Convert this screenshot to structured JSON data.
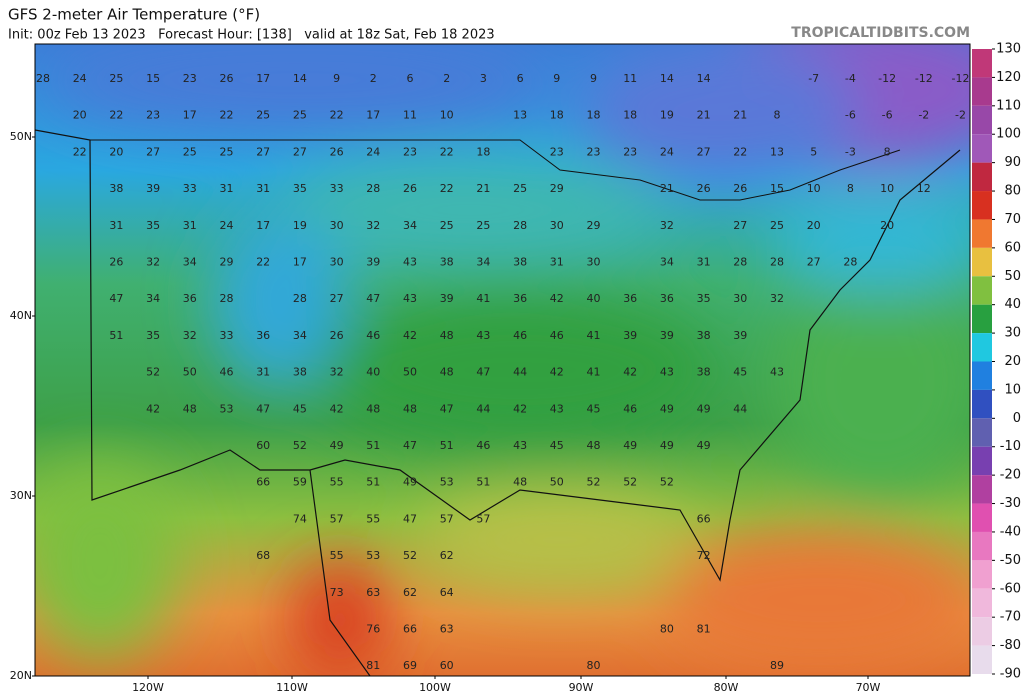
{
  "header": {
    "title": "GFS 2-meter Air Temperature (°F)",
    "subtitle": "Init: 00z Feb 13 2023   Forecast Hour: [138]   valid at 18z Sat, Feb 18 2023",
    "site": "TROPICALTIDBITS.COM"
  },
  "latitudes": [
    "50N",
    "40N",
    "30N",
    "20N"
  ],
  "longitudes": [
    "120W",
    "110W",
    "100W",
    "90W",
    "80W",
    "70W"
  ],
  "colorbar": {
    "ticks": [
      130,
      120,
      110,
      100,
      90,
      80,
      70,
      60,
      50,
      40,
      30,
      20,
      10,
      0,
      -10,
      -20,
      -30,
      -40,
      -50,
      -60,
      -70,
      -80,
      -90
    ]
  },
  "temperatures": [
    [
      28,
      24,
      25,
      15,
      23,
      26,
      17,
      14,
      9,
      2,
      6,
      2,
      3,
      6,
      9,
      9,
      11,
      14,
      14,
      null,
      null,
      -7,
      -4,
      -12,
      -12,
      -12
    ],
    [
      null,
      20,
      22,
      23,
      17,
      22,
      25,
      25,
      22,
      17,
      11,
      10,
      null,
      13,
      18,
      18,
      18,
      19,
      21,
      21,
      8,
      null,
      -6,
      -6,
      -2,
      -2
    ],
    [
      null,
      22,
      20,
      27,
      25,
      25,
      27,
      27,
      26,
      24,
      23,
      22,
      18,
      null,
      23,
      23,
      23,
      24,
      27,
      22,
      13,
      5,
      -3,
      8
    ],
    [
      null,
      null,
      38,
      39,
      33,
      31,
      31,
      35,
      33,
      28,
      26,
      22,
      21,
      25,
      29,
      null,
      null,
      21,
      26,
      26,
      15,
      10,
      8,
      10,
      12
    ],
    [
      null,
      null,
      31,
      35,
      31,
      24,
      17,
      19,
      30,
      32,
      34,
      25,
      25,
      28,
      30,
      29,
      null,
      32,
      null,
      27,
      25,
      20,
      null,
      20
    ],
    [
      null,
      null,
      26,
      32,
      34,
      29,
      22,
      17,
      30,
      39,
      43,
      38,
      34,
      38,
      31,
      30,
      null,
      34,
      31,
      28,
      28,
      27,
      28
    ],
    [
      null,
      null,
      47,
      34,
      36,
      28,
      null,
      28,
      27,
      47,
      43,
      39,
      41,
      36,
      42,
      40,
      36,
      36,
      35,
      30,
      32
    ],
    [
      null,
      null,
      51,
      35,
      32,
      33,
      36,
      34,
      26,
      46,
      42,
      48,
      43,
      46,
      46,
      41,
      39,
      39,
      38,
      39
    ],
    [
      null,
      null,
      null,
      52,
      50,
      46,
      31,
      38,
      32,
      40,
      50,
      48,
      47,
      44,
      42,
      41,
      42,
      43,
      38,
      45,
      43
    ],
    [
      null,
      null,
      null,
      42,
      48,
      53,
      47,
      45,
      42,
      48,
      48,
      47,
      44,
      42,
      43,
      45,
      46,
      49,
      49,
      44
    ],
    [
      null,
      null,
      null,
      null,
      null,
      null,
      60,
      52,
      49,
      51,
      47,
      51,
      46,
      43,
      45,
      48,
      49,
      49,
      49
    ],
    [
      null,
      null,
      null,
      null,
      null,
      null,
      66,
      59,
      55,
      51,
      49,
      53,
      51,
      48,
      50,
      52,
      52,
      52
    ],
    [
      null,
      null,
      null,
      null,
      null,
      null,
      null,
      74,
      57,
      55,
      47,
      57,
      57,
      null,
      null,
      null,
      null,
      null,
      66
    ],
    [
      null,
      null,
      null,
      null,
      null,
      null,
      68,
      null,
      55,
      53,
      52,
      62,
      null,
      null,
      null,
      null,
      null,
      null,
      72
    ],
    [
      null,
      null,
      null,
      null,
      null,
      null,
      null,
      null,
      73,
      63,
      62,
      64
    ],
    [
      null,
      null,
      null,
      null,
      null,
      null,
      null,
      null,
      null,
      76,
      66,
      63,
      null,
      null,
      null,
      null,
      null,
      80,
      81
    ],
    [
      null,
      null,
      null,
      null,
      null,
      null,
      null,
      null,
      null,
      81,
      69,
      60,
      null,
      null,
      null,
      80,
      null,
      null,
      null,
      null,
      89
    ]
  ]
}
